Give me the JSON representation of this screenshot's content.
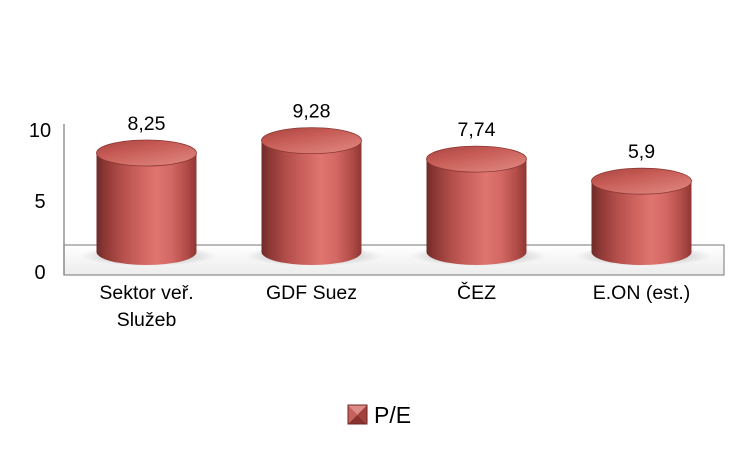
{
  "chart_data": {
    "type": "bar",
    "subtype": "3d-cylinder",
    "title": "",
    "xlabel": "",
    "ylabel": "",
    "categories": [
      "Sektor veř.\nSlužeb",
      "GDF Suez",
      "ČEZ",
      "E.ON (est.)"
    ],
    "values": [
      8.25,
      9.28,
      7.74,
      5.9
    ],
    "value_labels": [
      "8,25",
      "9,28",
      "7,74",
      "5,9"
    ],
    "series": [
      {
        "name": "P/E",
        "values": [
          8.25,
          9.28,
          7.74,
          5.9
        ]
      }
    ],
    "legend_label": "P/E",
    "legend_position": "bottom",
    "yticks": [
      10,
      5,
      0
    ],
    "ylim": [
      0,
      10
    ],
    "grid": false,
    "decimal_separator": ",",
    "colors": {
      "bar_base": "#c0504d",
      "bar_highlight": "#e0756f",
      "bar_shadow_edge": "#6e2b29",
      "axis_line": "#8c8c8c",
      "text": "#000000",
      "background": "#ffffff"
    }
  }
}
